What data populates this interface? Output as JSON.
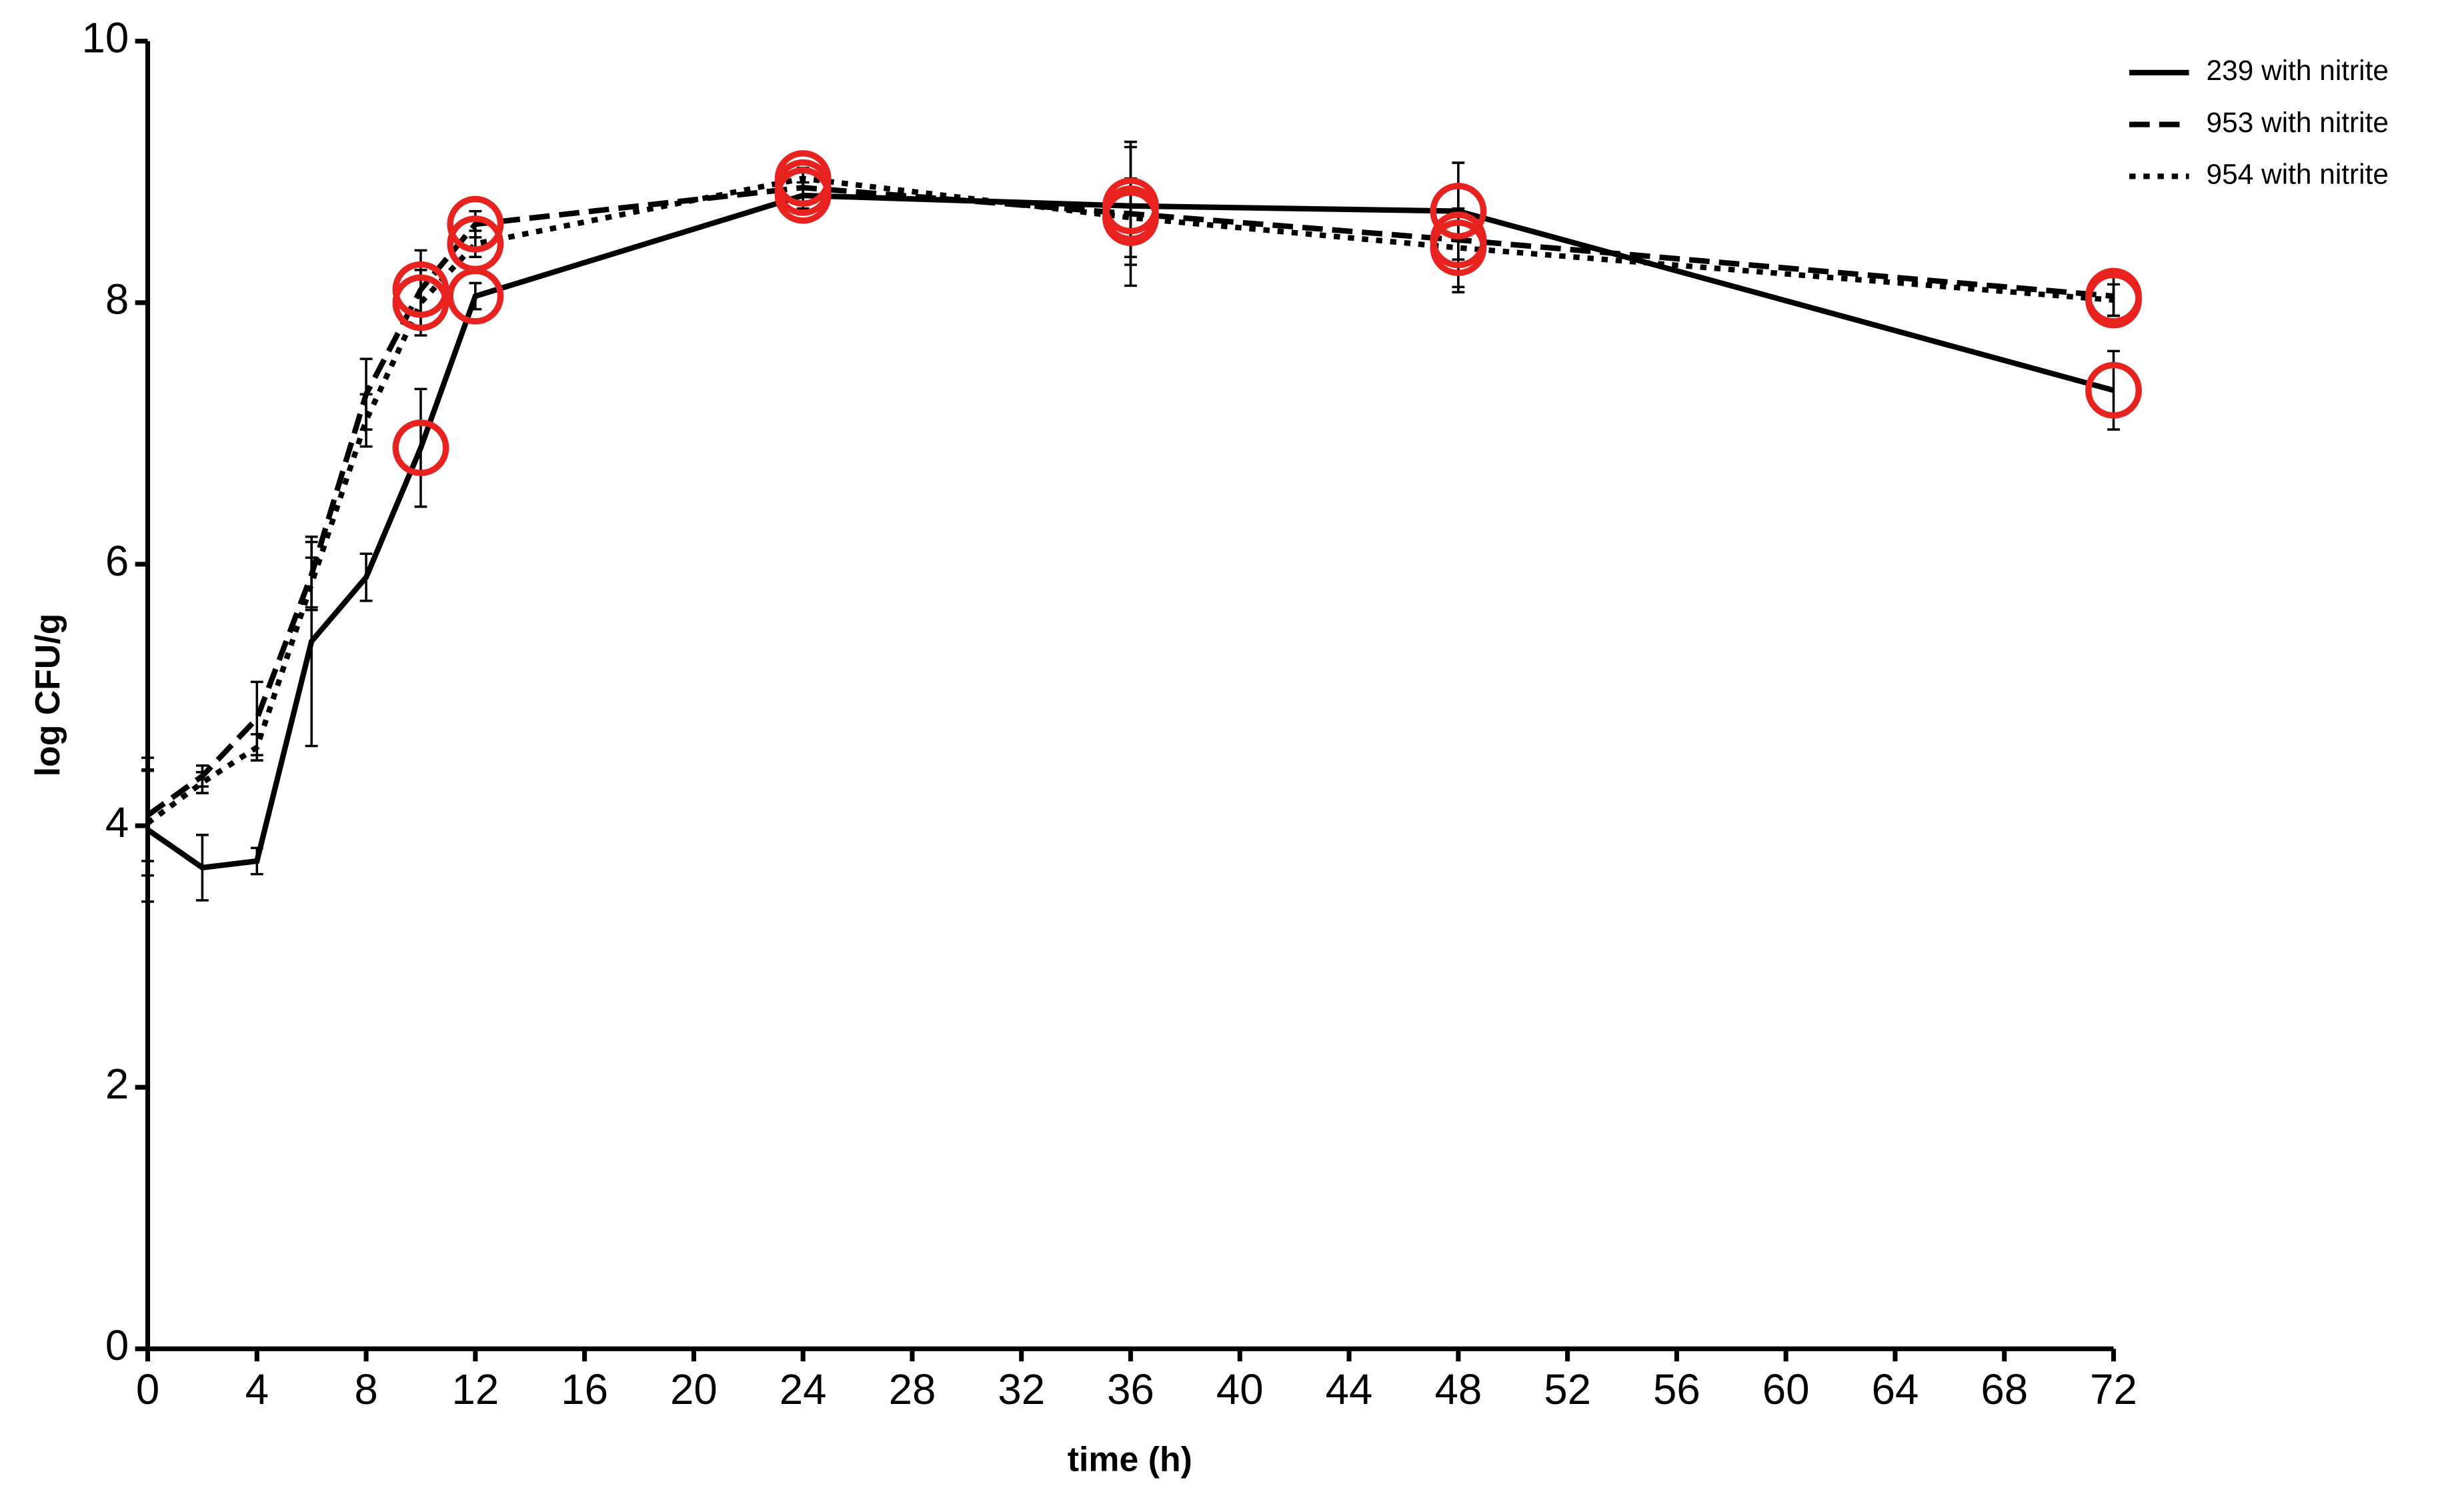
{
  "chart_data": {
    "type": "line",
    "x_label": "time (h)",
    "y_label": "log CFU/g",
    "x": [
      0,
      2,
      4,
      6,
      8,
      10,
      12,
      24,
      36,
      48,
      72
    ],
    "series": [
      {
        "name": "239 with nitrite",
        "color": "#000000",
        "line_style": "solid",
        "values": [
          3.97,
          3.68,
          3.73,
          5.41,
          5.9,
          6.89,
          8.05,
          8.82,
          8.74,
          8.7,
          7.33
        ],
        "errors": [
          0.55,
          0.25,
          0.1,
          0.8,
          0.18,
          0.45,
          0.1,
          0.1,
          0.45,
          0.37,
          0.3
        ]
      },
      {
        "name": "953 with nitrite",
        "color": "#000000",
        "line_style": "dashed",
        "values": [
          4.08,
          4.38,
          4.82,
          5.92,
          7.3,
          8.1,
          8.6,
          8.88,
          8.68,
          8.48,
          8.05
        ],
        "errors": [
          0.35,
          0.08,
          0.28,
          0.25,
          0.27,
          0.3,
          0.1,
          0.12,
          0.55,
          0.4,
          0.15
        ]
      },
      {
        "name": "954 with nitrite",
        "color": "#000000",
        "line_style": "dotted",
        "values": [
          4.02,
          4.33,
          4.6,
          5.85,
          7.1,
          8.0,
          8.45,
          8.95,
          8.65,
          8.42,
          8.02
        ],
        "errors": [
          0.4,
          0.08,
          0.1,
          0.2,
          0.2,
          0.25,
          0.1,
          0.08,
          0.3,
          0.3,
          0.12
        ]
      }
    ],
    "xlim": [
      0,
      72
    ],
    "xticks": [
      0,
      4,
      8,
      12,
      16,
      20,
      24,
      28,
      32,
      36,
      40,
      44,
      48,
      52,
      56,
      60,
      64,
      68,
      72
    ],
    "ylim": [
      0,
      10
    ],
    "yticks": [
      0,
      2,
      4,
      6,
      8,
      10
    ],
    "grid": false,
    "legend": "top-right",
    "highlight": {
      "color": "#e8231f",
      "x": [
        10,
        12,
        24,
        36,
        48,
        72
      ]
    }
  }
}
